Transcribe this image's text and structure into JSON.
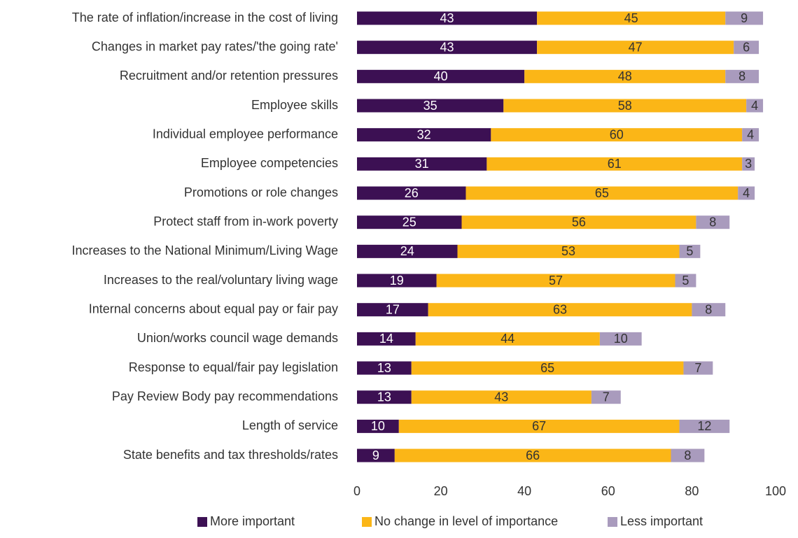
{
  "chart_data": {
    "type": "stacked-bar-horizontal",
    "categories": [
      "The rate of inflation/increase in the cost of living",
      "Changes in market pay rates/'the going rate'",
      "Recruitment and/or retention pressures",
      "Employee skills",
      "Individual employee performance",
      "Employee competencies",
      "Promotions or role changes",
      "Protect staff from in-work poverty",
      "Increases to the National Minimum/Living Wage",
      "Increases to the real/voluntary living wage",
      "Internal concerns about equal pay or fair pay",
      "Union/works council wage demands",
      "Response to equal/fair pay legislation",
      "Pay Review Body pay recommendations",
      "Length of service",
      "State benefits and tax thresholds/rates"
    ],
    "series": [
      {
        "name": "More important",
        "color": "#3c1053",
        "values": [
          43,
          43,
          40,
          35,
          32,
          31,
          26,
          25,
          24,
          19,
          17,
          14,
          13,
          13,
          10,
          9
        ]
      },
      {
        "name": "No change in level of importance",
        "color": "#fbb617",
        "values": [
          45,
          47,
          48,
          58,
          60,
          61,
          65,
          56,
          53,
          57,
          63,
          44,
          65,
          43,
          67,
          66
        ]
      },
      {
        "name": "Less important",
        "color": "#a99bbd",
        "values": [
          9,
          6,
          8,
          4,
          4,
          3,
          4,
          8,
          5,
          5,
          8,
          10,
          7,
          7,
          12,
          8
        ]
      }
    ],
    "xlim": [
      0,
      100
    ],
    "xticks": [
      0,
      20,
      40,
      60,
      80,
      100
    ],
    "legend": "bottom"
  }
}
